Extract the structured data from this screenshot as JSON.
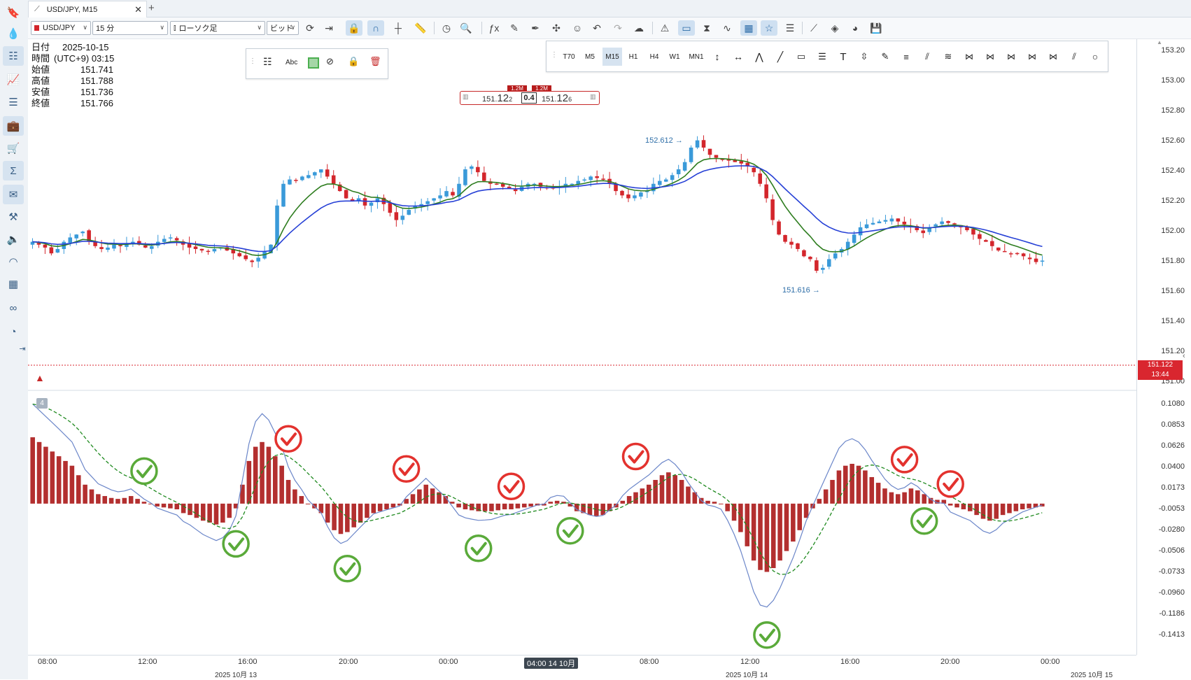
{
  "tab": {
    "title": "USD/JPY, M15",
    "add": "+",
    "close": "✕"
  },
  "toolbar": {
    "symbol": "USD/JPY",
    "period": "15 分",
    "chart_type": "ローソク足",
    "price_type": "ビッド"
  },
  "info": {
    "rows": [
      {
        "label": "日付",
        "value": "2025-10-15"
      },
      {
        "label": "時間",
        "value": "(UTC+9) 03:15"
      },
      {
        "label": "始値",
        "value": "151.741"
      },
      {
        "label": "高値",
        "value": "151.788"
      },
      {
        "label": "安値",
        "value": "151.736"
      },
      {
        "label": "終値",
        "value": "151.766"
      }
    ]
  },
  "drawbar": {
    "abc": "Abc"
  },
  "timeframes": [
    "T70",
    "M5",
    "M15",
    "H1",
    "H4",
    "W1",
    "MN1"
  ],
  "timeframe_active": "M15",
  "trade": {
    "sell_vol": "1.2M",
    "buy_vol": "1.2M",
    "sell_small": "151.",
    "sell_big": "12",
    "sell_tail": "2",
    "spread": "0.4",
    "buy_small": "151.",
    "buy_big": "12",
    "buy_tail": "6"
  },
  "price_scale": [
    "153.20",
    "153.00",
    "152.80",
    "152.60",
    "152.40",
    "152.20",
    "152.00",
    "151.80",
    "151.60",
    "151.40",
    "151.20",
    "151.00"
  ],
  "macd_scale": [
    "0.1080",
    "0.0853",
    "0.0626",
    "0.0400",
    "0.0173",
    "-0.0053",
    "-0.0280",
    "-0.0506",
    "-0.0733",
    "-0.0960",
    "-0.1186",
    "-0.1413"
  ],
  "current_price": {
    "value": "151.122",
    "countdown": "13:44"
  },
  "annotations": {
    "high": "152.612",
    "low": "151.616"
  },
  "indicator_badge": "4",
  "time_labels": [
    "08:00",
    "12:00",
    "16:00",
    "20:00",
    "00:00",
    "04:00 14 10月",
    "08:00",
    "12:00",
    "16:00",
    "20:00",
    "00:00"
  ],
  "date_labels": [
    "2025 10月 13",
    "2025 10月 14",
    "2025 10月 15"
  ],
  "colors": {
    "up": "#3a9ad9",
    "down": "#d3262c",
    "ma_fast": "#2e7d1f",
    "ma_slow": "#2640d6",
    "hist": "#b32f2f",
    "macd_line": "#6b86c9",
    "signal": "#1f8a1f",
    "check_green": "#5aaa3a",
    "check_red": "#e3322e"
  },
  "icons": [
    "bookmark-icon",
    "drop-icon",
    "tree-icon",
    "line-chart-icon",
    "list-icon",
    "briefcase-icon",
    "cart-icon",
    "sigma-icon",
    "mail-icon",
    "tools-icon",
    "speaker-icon",
    "rss-icon",
    "calendar-grid-icon",
    "glasses-icon",
    "gauge-icon",
    "collapse-icon"
  ],
  "chart_data": {
    "type": "candlestick",
    "symbol": "USD/JPY",
    "timeframe": "M15",
    "ylim": [
      151.0,
      153.25
    ],
    "price_axis_ticks": [
      153.2,
      153.0,
      152.8,
      152.6,
      152.4,
      152.2,
      152.0,
      151.8,
      151.6,
      151.4,
      151.2,
      151.0
    ],
    "close_series": [
      151.9,
      151.88,
      151.86,
      151.82,
      151.85,
      151.9,
      151.93,
      151.95,
      151.97,
      151.9,
      151.87,
      151.85,
      151.86,
      151.88,
      151.87,
      151.89,
      151.9,
      151.88,
      151.86,
      151.87,
      151.9,
      151.92,
      151.93,
      151.91,
      151.88,
      151.86,
      151.85,
      151.84,
      151.83,
      151.85,
      151.86,
      151.84,
      151.82,
      151.8,
      151.78,
      151.76,
      151.79,
      151.83,
      151.88,
      152.15,
      152.3,
      152.33,
      152.32,
      152.35,
      152.36,
      152.38,
      152.4,
      152.35,
      152.3,
      152.25,
      152.2,
      152.18,
      152.2,
      152.15,
      152.17,
      152.2,
      152.16,
      152.1,
      152.05,
      152.08,
      152.12,
      152.15,
      152.16,
      152.18,
      152.2,
      152.22,
      152.25,
      152.22,
      152.3,
      152.4,
      152.42,
      152.38,
      152.32,
      152.3,
      152.3,
      152.28,
      152.27,
      152.25,
      152.28,
      152.3,
      152.3,
      152.28,
      152.27,
      152.27,
      152.28,
      152.3,
      152.3,
      152.32,
      152.33,
      152.35,
      152.34,
      152.33,
      152.3,
      152.25,
      152.22,
      152.2,
      152.22,
      152.24,
      152.25,
      152.3,
      152.32,
      152.33,
      152.36,
      152.4,
      152.45,
      152.55,
      152.6,
      152.55,
      152.5,
      152.48,
      152.47,
      152.46,
      152.45,
      152.44,
      152.42,
      152.38,
      152.3,
      152.2,
      152.05,
      151.95,
      151.9,
      151.88,
      151.85,
      151.8,
      151.78,
      151.7,
      151.72,
      151.78,
      151.82,
      151.85,
      151.9,
      151.95,
      152.0,
      152.02,
      152.03,
      152.04,
      152.05,
      152.06,
      152.04,
      152.02,
      152.0,
      151.98,
      151.96,
      152.0,
      152.02,
      152.04,
      152.03,
      152.02,
      152.0,
      151.98,
      151.95,
      151.92,
      151.9,
      151.87,
      151.84,
      151.83,
      151.82,
      151.82,
      151.8,
      151.78,
      151.76,
      151.77
    ],
    "moving_averages": [
      {
        "name": "fast",
        "color": "#2e7d1f"
      },
      {
        "name": "slow",
        "color": "#2640d6"
      }
    ],
    "high_label": 152.612,
    "low_label": 151.616,
    "current_bid": 151.122,
    "macd": {
      "ylim": [
        -0.158,
        0.118
      ],
      "axis_ticks": [
        0.108,
        0.0853,
        0.0626,
        0.04,
        0.0173,
        -0.0053,
        -0.028,
        -0.0506,
        -0.0733,
        -0.096,
        -0.1186,
        -0.1413
      ],
      "histogram": [
        0.07,
        0.065,
        0.06,
        0.055,
        0.05,
        0.045,
        0.04,
        0.03,
        0.02,
        0.015,
        0.01,
        0.008,
        0.006,
        0.005,
        0.006,
        0.008,
        0.005,
        0.002,
        0.0,
        -0.003,
        -0.004,
        -0.005,
        -0.006,
        -0.01,
        -0.012,
        -0.015,
        -0.018,
        -0.02,
        -0.022,
        -0.02,
        -0.015,
        -0.005,
        0.02,
        0.045,
        0.06,
        0.065,
        0.06,
        0.05,
        0.04,
        0.025,
        0.015,
        0.008,
        0.0,
        -0.005,
        -0.01,
        -0.02,
        -0.028,
        -0.032,
        -0.03,
        -0.025,
        -0.02,
        -0.015,
        -0.01,
        -0.008,
        -0.006,
        -0.004,
        -0.002,
        0.005,
        0.01,
        0.015,
        0.02,
        0.016,
        0.012,
        0.008,
        0.002,
        -0.004,
        -0.006,
        -0.007,
        -0.008,
        -0.008,
        -0.008,
        -0.007,
        -0.006,
        -0.006,
        -0.005,
        -0.004,
        -0.003,
        -0.002,
        -0.002,
        0.002,
        0.003,
        0.002,
        -0.003,
        -0.008,
        -0.01,
        -0.012,
        -0.013,
        -0.012,
        -0.008,
        -0.004,
        0.003,
        0.008,
        0.012,
        0.016,
        0.02,
        0.025,
        0.03,
        0.033,
        0.03,
        0.025,
        0.018,
        0.012,
        0.006,
        0.003,
        0.002,
        0.0,
        -0.008,
        -0.018,
        -0.03,
        -0.045,
        -0.06,
        -0.07,
        -0.072,
        -0.068,
        -0.06,
        -0.05,
        -0.04,
        -0.028,
        -0.015,
        -0.005,
        0.005,
        0.015,
        0.025,
        0.035,
        0.04,
        0.042,
        0.04,
        0.035,
        0.028,
        0.022,
        0.016,
        0.012,
        0.01,
        0.012,
        0.016,
        0.014,
        0.01,
        0.006,
        0.004,
        0.004,
        -0.002,
        -0.004,
        -0.006,
        -0.008,
        -0.012,
        -0.016,
        -0.018,
        -0.016,
        -0.012,
        -0.01,
        -0.008,
        -0.006,
        -0.005,
        -0.004,
        -0.003
      ]
    },
    "signal_marks": [
      {
        "kind": "check",
        "color": "green",
        "bar": 17
      },
      {
        "kind": "check",
        "color": "green",
        "bar": 31
      },
      {
        "kind": "check",
        "color": "red",
        "bar": 39
      },
      {
        "kind": "check",
        "color": "green",
        "bar": 48
      },
      {
        "kind": "check",
        "color": "red",
        "bar": 57
      },
      {
        "kind": "check",
        "color": "green",
        "bar": 68
      },
      {
        "kind": "check",
        "color": "red",
        "bar": 73
      },
      {
        "kind": "check",
        "color": "green",
        "bar": 82
      },
      {
        "kind": "check",
        "color": "red",
        "bar": 92
      },
      {
        "kind": "check",
        "color": "green",
        "bar": 112
      },
      {
        "kind": "check",
        "color": "red",
        "bar": 133
      },
      {
        "kind": "check",
        "color": "green",
        "bar": 136
      },
      {
        "kind": "check",
        "color": "red",
        "bar": 140
      }
    ]
  }
}
